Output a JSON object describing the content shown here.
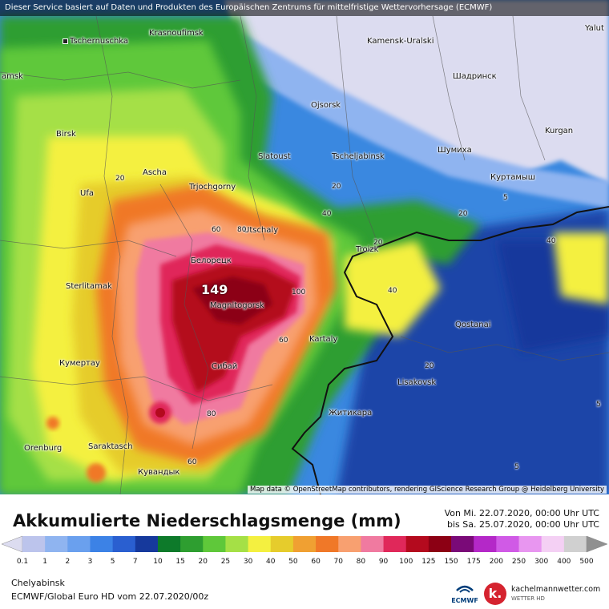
{
  "header": {
    "text": "Dieser Service basiert auf Daten und Produkten des Europäischen Zentrums für mittelfristige Wettervorhersage (ECMWF)"
  },
  "map": {
    "credit": "Map data © OpenStreetMap contributors, rendering GIScience Research Group @ Heidelberg University",
    "max_value_label": "149",
    "cities": [
      {
        "name": "Tschernuschka"
      },
      {
        "name": "Krasnoufimsk"
      },
      {
        "name": "Kamensk-Uralski"
      },
      {
        "name": "Шадринск"
      },
      {
        "name": "Ojsorsk"
      },
      {
        "name": "Kurgan"
      },
      {
        "name": "Birsk"
      },
      {
        "name": "Slatoust"
      },
      {
        "name": "Tscheljabinsk"
      },
      {
        "name": "Шумиха"
      },
      {
        "name": "Aschа"
      },
      {
        "name": "Trjochgorny"
      },
      {
        "name": "Ufa"
      },
      {
        "name": "Куртамыш"
      },
      {
        "name": "Utschaly"
      },
      {
        "name": "Белорецк"
      },
      {
        "name": "Troizk"
      },
      {
        "name": "Sterlitamak"
      },
      {
        "name": "Magnitogorsk"
      },
      {
        "name": "Qostanai"
      },
      {
        "name": "Kartaly"
      },
      {
        "name": "Кумертау"
      },
      {
        "name": "Сибай"
      },
      {
        "name": "Lisakovsk"
      },
      {
        "name": "Житикара"
      },
      {
        "name": "Orenburg"
      },
      {
        "name": "Saraktasch"
      },
      {
        "name": "Кувандык"
      },
      {
        "name": "amsk"
      },
      {
        "name": "Yalut"
      }
    ],
    "contour_labels": [
      "20",
      "40",
      "40",
      "60",
      "80",
      "100",
      "60",
      "20",
      "40",
      "20",
      "5",
      "20",
      "5",
      "80",
      "60",
      "20",
      "5"
    ]
  },
  "legend": {
    "title": "Akkumulierte Niederschlagsmenge (mm)",
    "period_from": "Von Mi. 22.07.2020, 00:00 Uhr UTC",
    "period_to": "bis Sa. 25.07.2020, 00:00 Uhr UTC",
    "ticks": [
      "0.1",
      "1",
      "2",
      "3",
      "5",
      "7",
      "10",
      "15",
      "20",
      "25",
      "30",
      "40",
      "50",
      "60",
      "70",
      "80",
      "90",
      "100",
      "125",
      "150",
      "175",
      "200",
      "250",
      "300",
      "400",
      "500"
    ],
    "colors": [
      "#dcdcf0",
      "#bcc4ec",
      "#8fb4f0",
      "#6aa0ee",
      "#3c82e6",
      "#2a5fd0",
      "#16399c",
      "#0d7a2a",
      "#2e9e30",
      "#5fc83a",
      "#a5e046",
      "#f4f040",
      "#e6cc2c",
      "#f0a032",
      "#f07828",
      "#f8a070",
      "#f07aa0",
      "#e0285a",
      "#b40a1e",
      "#8c0014",
      "#7a0a78",
      "#b428c8",
      "#d05ae6",
      "#e896f0",
      "#f4d0f4",
      "#d0d0d0",
      "#909090"
    ]
  },
  "footer": {
    "location": "Chelyabinsk",
    "model": "ECMWF/Global Euro HD vom  22.07.2020/00z",
    "logo_ecmwf": "ECMWF",
    "logo_site": "kachelmannwetter.com",
    "logo_site_sub": "WETTER HD",
    "logo_k": "k."
  }
}
